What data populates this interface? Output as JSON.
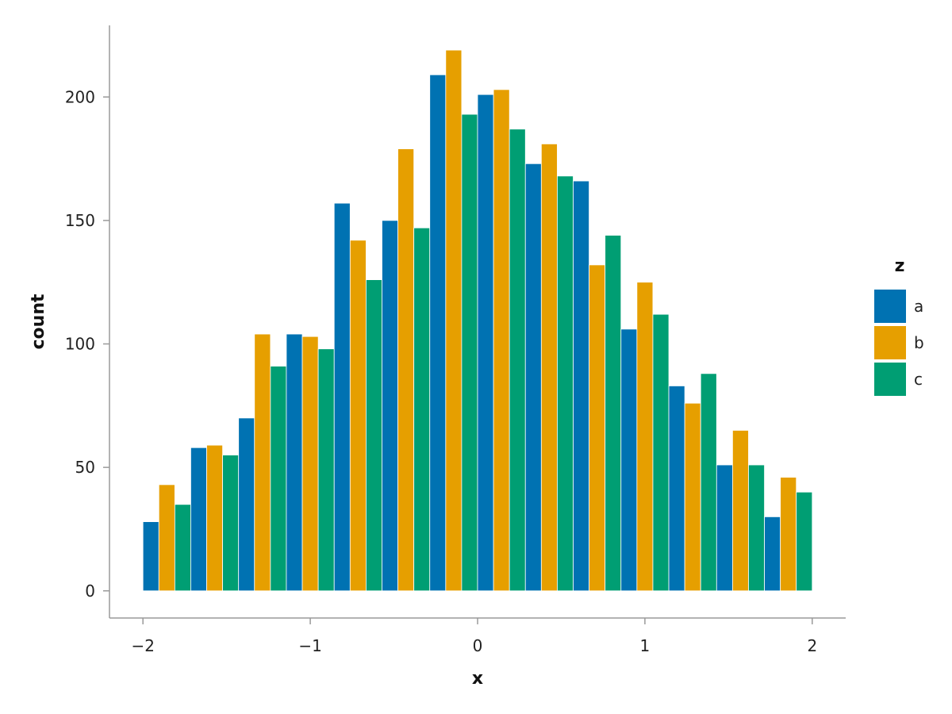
{
  "chart_data": {
    "type": "bar",
    "histogram": true,
    "xlabel": "x",
    "ylabel": "count",
    "xlim": [
      -2.2,
      2.2
    ],
    "ylim": [
      -11,
      229
    ],
    "x_ticks": [
      -2,
      -1,
      0,
      1,
      2
    ],
    "x_tick_labels": [
      "−2",
      "−1",
      "0",
      "1",
      "2"
    ],
    "y_ticks": [
      0,
      50,
      100,
      150,
      200
    ],
    "y_tick_labels": [
      "0",
      "50",
      "100",
      "150",
      "200"
    ],
    "bin_edges": [
      -2.0,
      -1.7143,
      -1.4286,
      -1.1429,
      -0.8571,
      -0.5714,
      -0.2857,
      0.0,
      0.2857,
      0.5714,
      0.8571,
      1.1429,
      1.4286,
      1.7143,
      2.0
    ],
    "grid": false,
    "legend": {
      "title": "z",
      "position": "right"
    },
    "series": [
      {
        "name": "a",
        "color": "#0072B2",
        "values": [
          28,
          58,
          70,
          104,
          157,
          150,
          209,
          201,
          173,
          166,
          106,
          83,
          51,
          30
        ]
      },
      {
        "name": "b",
        "color": "#E69F00",
        "values": [
          43,
          59,
          104,
          103,
          142,
          179,
          219,
          203,
          181,
          132,
          125,
          76,
          65,
          46
        ]
      },
      {
        "name": "c",
        "color": "#009E73",
        "values": [
          35,
          55,
          91,
          98,
          126,
          147,
          193,
          187,
          168,
          144,
          112,
          88,
          51,
          40
        ]
      }
    ]
  }
}
